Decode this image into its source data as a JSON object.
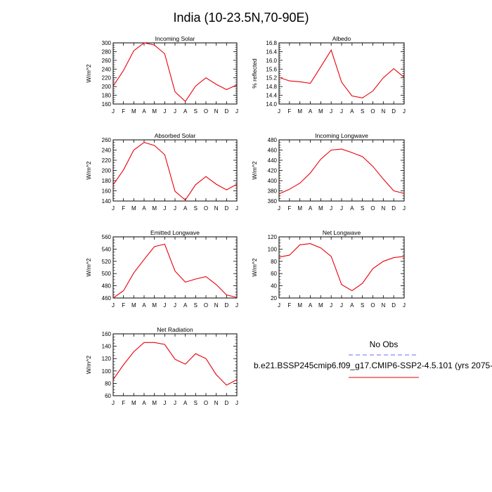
{
  "title": "India (10-23.5N,70-90E)",
  "legend": {
    "obs_label": "No Obs",
    "model_label": "b.e21.BSSP245cmip6.f09_g17.CMIP6-SSP2-4.5.101 (yrs 2075-",
    "obs_color": "#6b6bff",
    "model_color": "#e8000b",
    "obs_style": "dashed",
    "model_style": "solid"
  },
  "chart_data": [
    {
      "type": "line",
      "title": "Incoming Solar",
      "ylabel": "W/m^2",
      "categories": [
        "J",
        "F",
        "M",
        "A",
        "M",
        "J",
        "J",
        "A",
        "S",
        "O",
        "N",
        "D",
        "J"
      ],
      "ylim": [
        160,
        300
      ],
      "yticks": [
        160,
        180,
        200,
        220,
        240,
        260,
        280,
        300
      ],
      "series": [
        {
          "values": [
            201,
            237,
            282,
            300,
            295,
            275,
            188,
            166,
            201,
            220,
            205,
            193,
            204
          ]
        }
      ]
    },
    {
      "type": "line",
      "title": "Albedo",
      "ylabel": "% reflected",
      "categories": [
        "J",
        "F",
        "M",
        "A",
        "M",
        "J",
        "J",
        "A",
        "S",
        "O",
        "N",
        "D",
        "J"
      ],
      "ylim": [
        14.0,
        16.8
      ],
      "yticks": [
        "14.0",
        "14.4",
        "14.8",
        "15.2",
        "15.6",
        "16.0",
        "16.4",
        "16.8"
      ],
      "series": [
        {
          "values": [
            15.22,
            15.06,
            15.02,
            14.95,
            15.7,
            16.47,
            15.0,
            14.37,
            14.28,
            14.6,
            15.2,
            15.62,
            15.22
          ]
        }
      ]
    },
    {
      "type": "line",
      "title": "Absorbed Solar",
      "ylabel": "W/m^2",
      "categories": [
        "J",
        "F",
        "M",
        "A",
        "M",
        "J",
        "J",
        "A",
        "S",
        "O",
        "N",
        "D",
        "J"
      ],
      "ylim": [
        140,
        260
      ],
      "yticks": [
        140,
        160,
        180,
        200,
        220,
        240,
        260
      ],
      "series": [
        {
          "values": [
            172,
            201,
            240,
            255,
            249,
            231,
            159,
            142,
            172,
            188,
            173,
            162,
            173
          ]
        }
      ]
    },
    {
      "type": "line",
      "title": "Incoming Longwave",
      "ylabel": "W/m^2",
      "categories": [
        "J",
        "F",
        "M",
        "A",
        "M",
        "J",
        "J",
        "A",
        "S",
        "O",
        "N",
        "D",
        "J"
      ],
      "ylim": [
        360,
        480
      ],
      "yticks": [
        360,
        380,
        400,
        420,
        440,
        460,
        480
      ],
      "series": [
        {
          "values": [
            374,
            383,
            395,
            415,
            442,
            460,
            462,
            455,
            447,
            428,
            403,
            380,
            375
          ]
        }
      ]
    },
    {
      "type": "line",
      "title": "Emitted Longwave",
      "ylabel": "W/m^2",
      "categories": [
        "J",
        "F",
        "M",
        "A",
        "M",
        "J",
        "J",
        "A",
        "S",
        "O",
        "N",
        "D",
        "J"
      ],
      "ylim": [
        460,
        560
      ],
      "yticks": [
        460,
        480,
        500,
        520,
        540,
        560
      ],
      "series": [
        {
          "values": [
            460,
            472,
            501,
            523,
            544,
            548,
            504,
            486,
            491,
            495,
            482,
            465,
            461
          ]
        }
      ]
    },
    {
      "type": "line",
      "title": "Net Longwave",
      "ylabel": "W/m^2",
      "categories": [
        "J",
        "F",
        "M",
        "A",
        "M",
        "J",
        "J",
        "A",
        "S",
        "O",
        "N",
        "D",
        "J"
      ],
      "ylim": [
        20,
        120
      ],
      "yticks": [
        20,
        40,
        60,
        80,
        100,
        120
      ],
      "series": [
        {
          "values": [
            87,
            90,
            107,
            109,
            102,
            88,
            42,
            32,
            44,
            68,
            80,
            86,
            88
          ]
        }
      ]
    },
    {
      "type": "line",
      "title": "Net Radiation",
      "ylabel": "W/m^2",
      "categories": [
        "J",
        "F",
        "M",
        "A",
        "M",
        "J",
        "J",
        "A",
        "S",
        "O",
        "N",
        "D",
        "J"
      ],
      "ylim": [
        60,
        160
      ],
      "yticks": [
        60,
        80,
        100,
        120,
        140,
        160
      ],
      "series": [
        {
          "values": [
            86,
            110,
            131,
            146,
            146,
            143,
            119,
            111,
            128,
            120,
            94,
            77,
            86
          ]
        }
      ]
    }
  ]
}
